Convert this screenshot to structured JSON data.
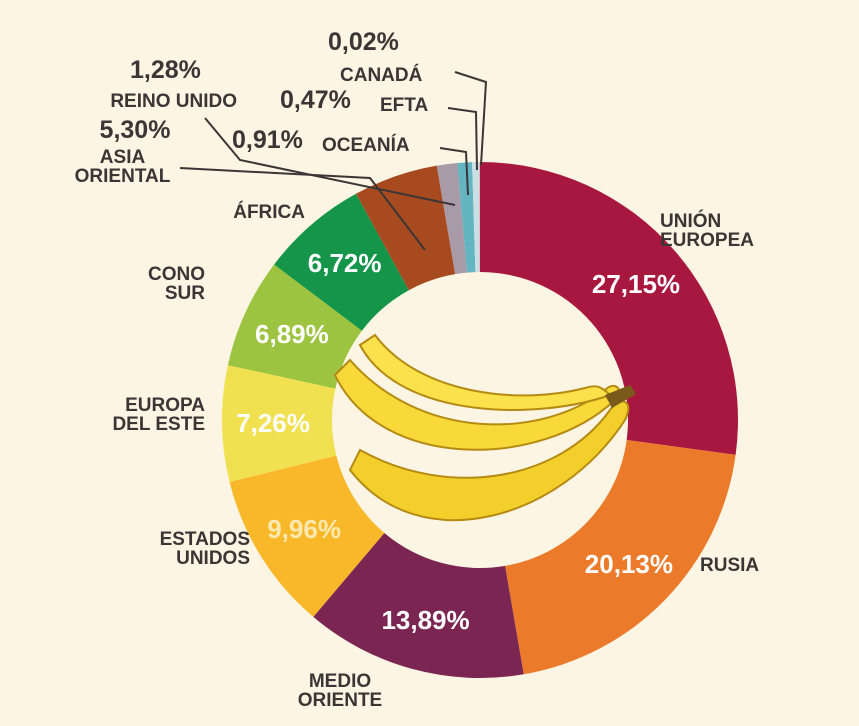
{
  "chart_data": {
    "type": "pie",
    "donut": true,
    "categories": [
      "UNIÓN EUROPEA",
      "RUSIA",
      "MEDIO ORIENTE",
      "ESTADOS UNIDOS",
      "EUROPA DEL ESTE",
      "CONO SUR",
      "ÁFRICA",
      "ASIA ORIENTAL",
      "REINO UNIDO",
      "OCEANÍA",
      "EFTA",
      "CANADÁ"
    ],
    "values": [
      27.15,
      20.13,
      13.89,
      9.96,
      7.26,
      6.89,
      6.72,
      5.3,
      1.28,
      0.91,
      0.47,
      0.02
    ],
    "value_labels": [
      "27,15%",
      "20,13%",
      "13,89%",
      "9,96%",
      "7,26%",
      "6,89%",
      "6,72%",
      "5,30%",
      "1,28%",
      "0,91%",
      "0,47%",
      "0,02%"
    ],
    "colors": [
      "#a8173f",
      "#ec7a2b",
      "#7b2652",
      "#f9b82a",
      "#f1e150",
      "#9dc441",
      "#14954a",
      "#a84a20",
      "#a99aa8",
      "#62b5c1",
      "#c9dfe3",
      "#e8657a"
    ]
  }
}
